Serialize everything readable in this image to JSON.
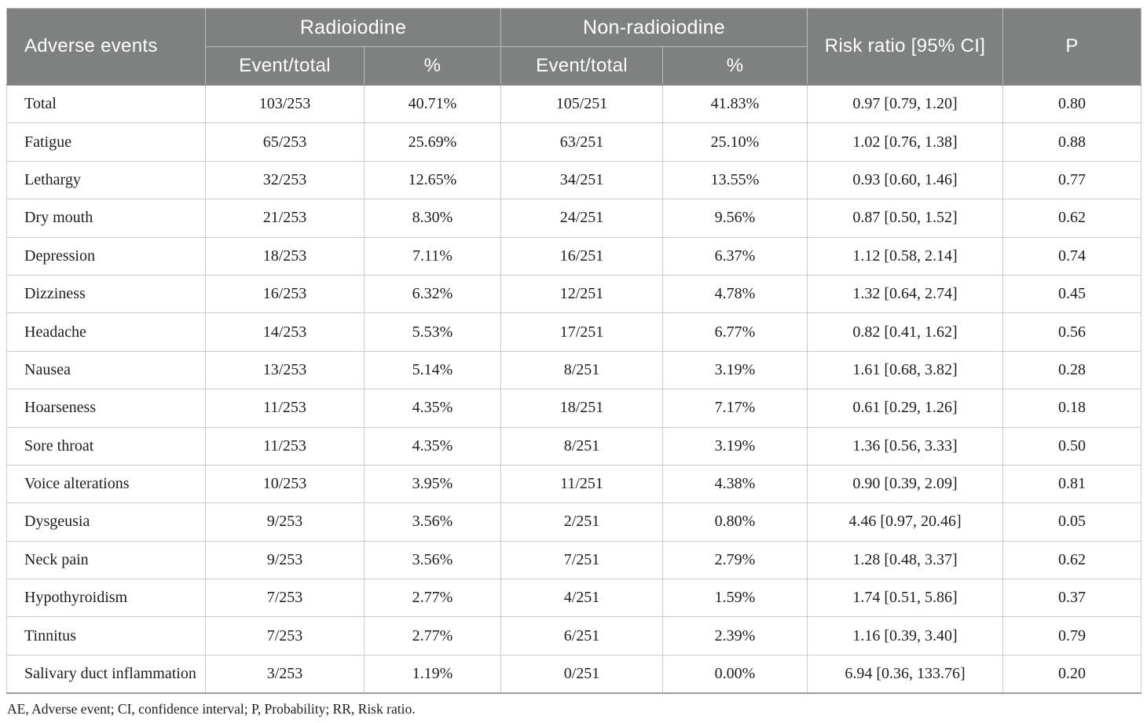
{
  "table": {
    "header": {
      "adverse_events": "Adverse events",
      "group_radioiodine": "Radioiodine",
      "group_non_radioiodine": "Non-radioiodine",
      "sub_event_total_rai": "Event/total",
      "sub_percent_rai": "%",
      "sub_event_total_nonrai": "Event/total",
      "sub_percent_nonrai": "%",
      "risk_ratio": "Risk ratio [95% CI]",
      "p": "P"
    },
    "rows": [
      [
        "Total",
        "103/253",
        "40.71%",
        "105/251",
        "41.83%",
        "0.97 [0.79, 1.20]",
        "0.80"
      ],
      [
        "Fatigue",
        "65/253",
        "25.69%",
        "63/251",
        "25.10%",
        "1.02 [0.76, 1.38]",
        "0.88"
      ],
      [
        "Lethargy",
        "32/253",
        "12.65%",
        "34/251",
        "13.55%",
        "0.93 [0.60, 1.46]",
        "0.77"
      ],
      [
        "Dry mouth",
        "21/253",
        "8.30%",
        "24/251",
        "9.56%",
        "0.87 [0.50, 1.52]",
        "0.62"
      ],
      [
        "Depression",
        "18/253",
        "7.11%",
        "16/251",
        "6.37%",
        "1.12 [0.58, 2.14]",
        "0.74"
      ],
      [
        "Dizziness",
        "16/253",
        "6.32%",
        "12/251",
        "4.78%",
        "1.32 [0.64, 2.74]",
        "0.45"
      ],
      [
        "Headache",
        "14/253",
        "5.53%",
        "17/251",
        "6.77%",
        "0.82 [0.41, 1.62]",
        "0.56"
      ],
      [
        "Nausea",
        "13/253",
        "5.14%",
        "8/251",
        "3.19%",
        "1.61 [0.68, 3.82]",
        "0.28"
      ],
      [
        "Hoarseness",
        "11/253",
        "4.35%",
        "18/251",
        "7.17%",
        "0.61 [0.29, 1.26]",
        "0.18"
      ],
      [
        "Sore throat",
        "11/253",
        "4.35%",
        "8/251",
        "3.19%",
        "1.36 [0.56, 3.33]",
        "0.50"
      ],
      [
        "Voice alterations",
        "10/253",
        "3.95%",
        "11/251",
        "4.38%",
        "0.90 [0.39, 2.09]",
        "0.81"
      ],
      [
        "Dysgeusia",
        "9/253",
        "3.56%",
        "2/251",
        "0.80%",
        "4.46 [0.97, 20.46]",
        "0.05"
      ],
      [
        "Neck pain",
        "9/253",
        "3.56%",
        "7/251",
        "2.79%",
        "1.28 [0.48, 3.37]",
        "0.62"
      ],
      [
        "Hypothyroidism",
        "7/253",
        "2.77%",
        "4/251",
        "1.59%",
        "1.74 [0.51, 5.86]",
        "0.37"
      ],
      [
        "Tinnitus",
        "7/253",
        "2.77%",
        "6/251",
        "2.39%",
        "1.16 [0.39, 3.40]",
        "0.79"
      ],
      [
        "Salivary duct inflammation",
        "3/253",
        "1.19%",
        "0/251",
        "0.00%",
        "6.94 [0.36, 133.76]",
        "0.20"
      ]
    ],
    "footnote": "AE, Adverse event; CI, confidence interval; P, Probability; RR, Risk ratio.",
    "colors": {
      "header_bg": "#7f8080",
      "header_text": "#ffffff",
      "body_text": "#1d1d1d",
      "border_light": "#cbcbcb",
      "border_dark": "#9c9c9c"
    }
  }
}
